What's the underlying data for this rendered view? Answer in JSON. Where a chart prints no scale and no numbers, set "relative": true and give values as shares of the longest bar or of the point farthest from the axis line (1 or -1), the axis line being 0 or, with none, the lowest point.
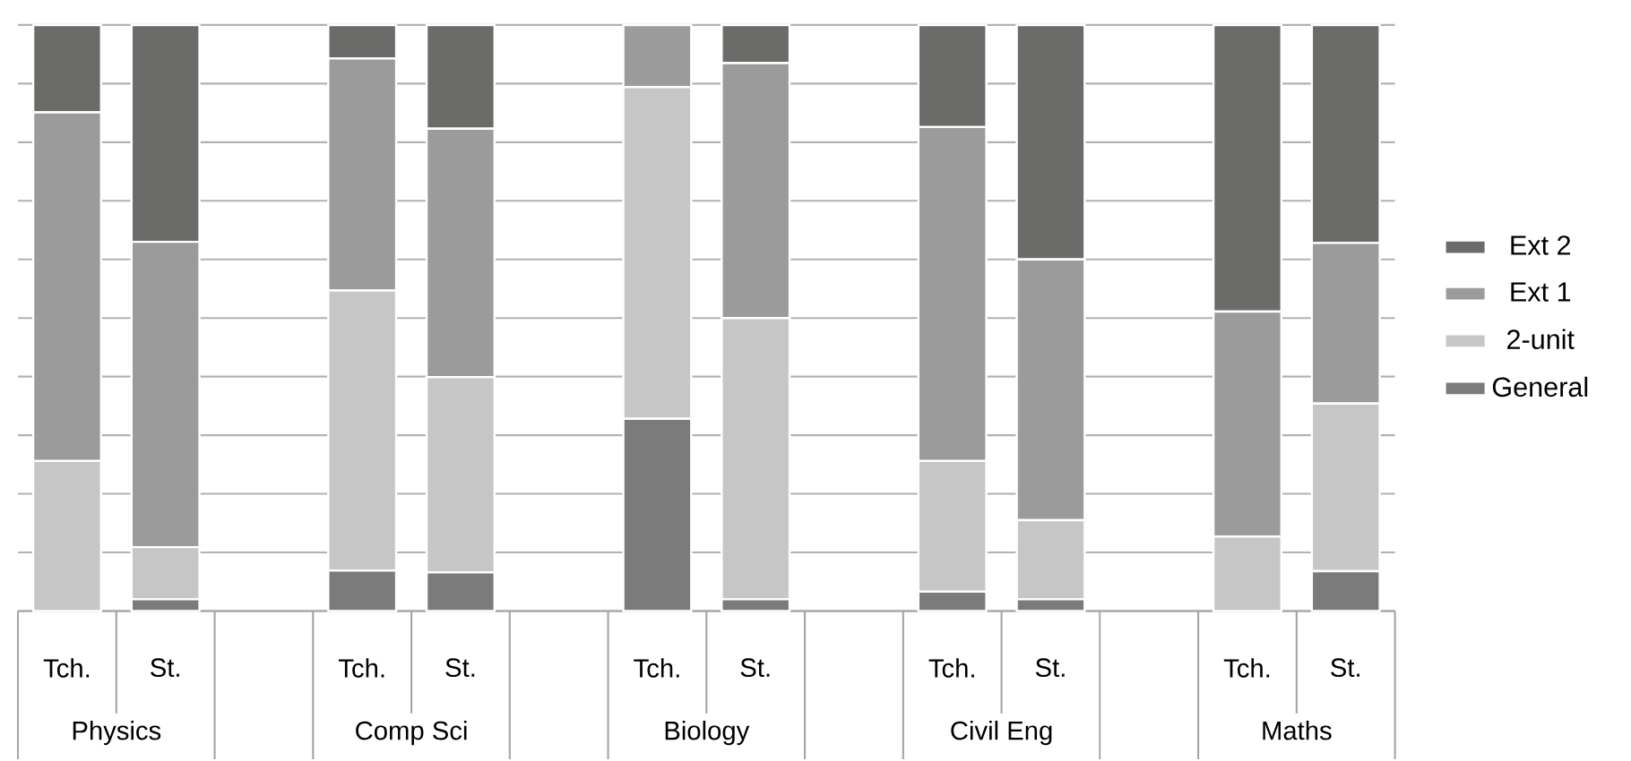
{
  "chart_data": {
    "type": "bar",
    "stacked": true,
    "relative": true,
    "grid": "y",
    "legend": "right",
    "categories": [
      "Tch.",
      "St.",
      null,
      "Tch.",
      "St.",
      null,
      "Tch.",
      "St.",
      null,
      "Tch.",
      "St.",
      null,
      "Tch.",
      "St."
    ],
    "annotations": [
      "Physics",
      "Comp Sci",
      "Biology",
      "Civil Eng",
      "Maths"
    ],
    "series": [
      {
        "name": "General",
        "color": "#7b7b7b",
        "values": [
          0,
          0.02,
          null,
          0.069,
          0.066,
          null,
          0.328,
          0.02,
          null,
          0.033,
          0.02,
          null,
          0,
          0.068
        ]
      },
      {
        "name": "2-unit",
        "color": "#c5c6c5",
        "values": [
          0.256,
          0.089,
          null,
          0.478,
          0.333,
          null,
          0.566,
          0.48,
          null,
          0.223,
          0.135,
          null,
          0.127,
          0.286
        ]
      },
      {
        "name": "Ext 1",
        "color": "#9a9b9a",
        "values": [
          0.595,
          0.521,
          null,
          0.396,
          0.424,
          null,
          0.106,
          0.435,
          null,
          0.57,
          0.445,
          null,
          0.384,
          0.274
        ]
      },
      {
        "name": "Ext 2",
        "color": "#6b6b69",
        "values": [
          0.149,
          0.37,
          null,
          0.057,
          0.177,
          null,
          0,
          0.065,
          null,
          0.174,
          0.4,
          null,
          0.489,
          0.372
        ]
      }
    ]
  }
}
